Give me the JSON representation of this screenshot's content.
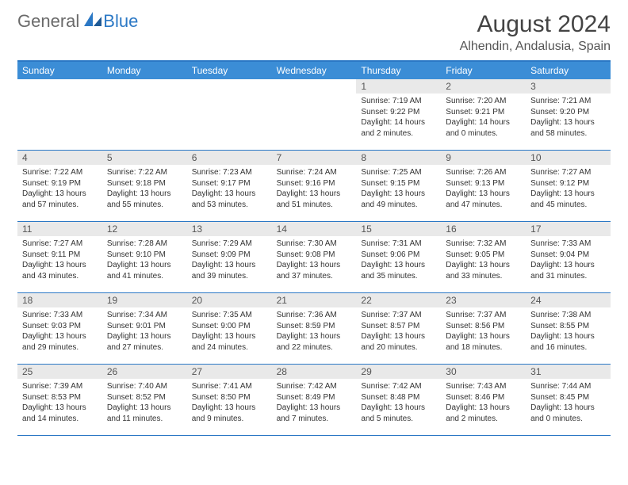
{
  "logo": {
    "general": "General",
    "blue": "Blue"
  },
  "title": "August 2024",
  "subtitle": "Alhendin, Andalusia, Spain",
  "colors": {
    "header_bg": "#3b8dd6",
    "border": "#2b78c5",
    "daynum_bg": "#e9e9e9",
    "text": "#333333",
    "logo_gray": "#6a6a6a",
    "logo_blue": "#2b78c5"
  },
  "day_headers": [
    "Sunday",
    "Monday",
    "Tuesday",
    "Wednesday",
    "Thursday",
    "Friday",
    "Saturday"
  ],
  "grid": {
    "leading_blanks": 4,
    "days": [
      {
        "n": 1,
        "sunrise": "7:19 AM",
        "sunset": "9:22 PM",
        "dl_h": 14,
        "dl_m": 2
      },
      {
        "n": 2,
        "sunrise": "7:20 AM",
        "sunset": "9:21 PM",
        "dl_h": 14,
        "dl_m": 0
      },
      {
        "n": 3,
        "sunrise": "7:21 AM",
        "sunset": "9:20 PM",
        "dl_h": 13,
        "dl_m": 58
      },
      {
        "n": 4,
        "sunrise": "7:22 AM",
        "sunset": "9:19 PM",
        "dl_h": 13,
        "dl_m": 57
      },
      {
        "n": 5,
        "sunrise": "7:22 AM",
        "sunset": "9:18 PM",
        "dl_h": 13,
        "dl_m": 55
      },
      {
        "n": 6,
        "sunrise": "7:23 AM",
        "sunset": "9:17 PM",
        "dl_h": 13,
        "dl_m": 53
      },
      {
        "n": 7,
        "sunrise": "7:24 AM",
        "sunset": "9:16 PM",
        "dl_h": 13,
        "dl_m": 51
      },
      {
        "n": 8,
        "sunrise": "7:25 AM",
        "sunset": "9:15 PM",
        "dl_h": 13,
        "dl_m": 49
      },
      {
        "n": 9,
        "sunrise": "7:26 AM",
        "sunset": "9:13 PM",
        "dl_h": 13,
        "dl_m": 47
      },
      {
        "n": 10,
        "sunrise": "7:27 AM",
        "sunset": "9:12 PM",
        "dl_h": 13,
        "dl_m": 45
      },
      {
        "n": 11,
        "sunrise": "7:27 AM",
        "sunset": "9:11 PM",
        "dl_h": 13,
        "dl_m": 43
      },
      {
        "n": 12,
        "sunrise": "7:28 AM",
        "sunset": "9:10 PM",
        "dl_h": 13,
        "dl_m": 41
      },
      {
        "n": 13,
        "sunrise": "7:29 AM",
        "sunset": "9:09 PM",
        "dl_h": 13,
        "dl_m": 39
      },
      {
        "n": 14,
        "sunrise": "7:30 AM",
        "sunset": "9:08 PM",
        "dl_h": 13,
        "dl_m": 37
      },
      {
        "n": 15,
        "sunrise": "7:31 AM",
        "sunset": "9:06 PM",
        "dl_h": 13,
        "dl_m": 35
      },
      {
        "n": 16,
        "sunrise": "7:32 AM",
        "sunset": "9:05 PM",
        "dl_h": 13,
        "dl_m": 33
      },
      {
        "n": 17,
        "sunrise": "7:33 AM",
        "sunset": "9:04 PM",
        "dl_h": 13,
        "dl_m": 31
      },
      {
        "n": 18,
        "sunrise": "7:33 AM",
        "sunset": "9:03 PM",
        "dl_h": 13,
        "dl_m": 29
      },
      {
        "n": 19,
        "sunrise": "7:34 AM",
        "sunset": "9:01 PM",
        "dl_h": 13,
        "dl_m": 27
      },
      {
        "n": 20,
        "sunrise": "7:35 AM",
        "sunset": "9:00 PM",
        "dl_h": 13,
        "dl_m": 24
      },
      {
        "n": 21,
        "sunrise": "7:36 AM",
        "sunset": "8:59 PM",
        "dl_h": 13,
        "dl_m": 22
      },
      {
        "n": 22,
        "sunrise": "7:37 AM",
        "sunset": "8:57 PM",
        "dl_h": 13,
        "dl_m": 20
      },
      {
        "n": 23,
        "sunrise": "7:37 AM",
        "sunset": "8:56 PM",
        "dl_h": 13,
        "dl_m": 18
      },
      {
        "n": 24,
        "sunrise": "7:38 AM",
        "sunset": "8:55 PM",
        "dl_h": 13,
        "dl_m": 16
      },
      {
        "n": 25,
        "sunrise": "7:39 AM",
        "sunset": "8:53 PM",
        "dl_h": 13,
        "dl_m": 14
      },
      {
        "n": 26,
        "sunrise": "7:40 AM",
        "sunset": "8:52 PM",
        "dl_h": 13,
        "dl_m": 11
      },
      {
        "n": 27,
        "sunrise": "7:41 AM",
        "sunset": "8:50 PM",
        "dl_h": 13,
        "dl_m": 9
      },
      {
        "n": 28,
        "sunrise": "7:42 AM",
        "sunset": "8:49 PM",
        "dl_h": 13,
        "dl_m": 7
      },
      {
        "n": 29,
        "sunrise": "7:42 AM",
        "sunset": "8:48 PM",
        "dl_h": 13,
        "dl_m": 5
      },
      {
        "n": 30,
        "sunrise": "7:43 AM",
        "sunset": "8:46 PM",
        "dl_h": 13,
        "dl_m": 2
      },
      {
        "n": 31,
        "sunrise": "7:44 AM",
        "sunset": "8:45 PM",
        "dl_h": 13,
        "dl_m": 0
      }
    ]
  },
  "labels": {
    "sunrise": "Sunrise:",
    "sunset": "Sunset:",
    "daylight": "Daylight:",
    "hours": "hours",
    "and": "and",
    "minutes": "minutes."
  }
}
